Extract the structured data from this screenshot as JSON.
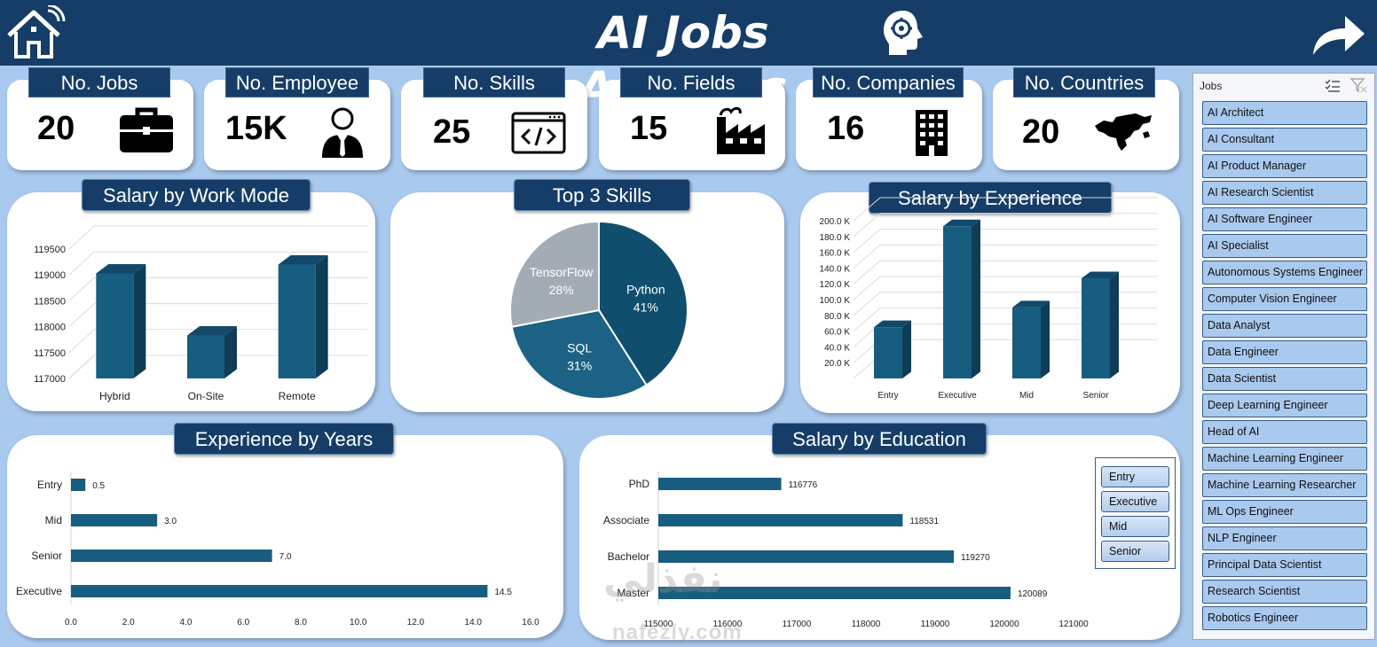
{
  "header": {
    "title": "AI Jobs Analysis"
  },
  "icons": {
    "home": "home-wifi-icon",
    "brain": "brain-gear-icon",
    "forward": "forward-arrow-icon"
  },
  "kpis": [
    {
      "label": "No. Jobs",
      "value": "20",
      "icon": "briefcase-icon"
    },
    {
      "label": "No. Employee",
      "value": "15K",
      "icon": "employee-icon"
    },
    {
      "label": "No. Skills",
      "value": "25",
      "icon": "code-window-icon"
    },
    {
      "label": "No. Fields",
      "value": "15",
      "icon": "factory-icon"
    },
    {
      "label": "No. Companies",
      "value": "16",
      "icon": "building-icon"
    },
    {
      "label": "No. Countries",
      "value": "20",
      "icon": "world-map-icon"
    }
  ],
  "chart_data": [
    {
      "type": "bar",
      "title": "Salary by Work Mode",
      "categories": [
        "Hybrid",
        "On-Site",
        "Remote"
      ],
      "values": [
        119030,
        117830,
        119200
      ],
      "ylim": [
        117000,
        119500
      ],
      "yticks": [
        "117000",
        "117500",
        "118000",
        "118500",
        "119000",
        "119500"
      ],
      "grid": true
    },
    {
      "type": "pie",
      "title": "Top 3 Skills",
      "labels": [
        "Python",
        "SQL",
        "TensorFlow"
      ],
      "values": [
        41,
        31,
        28
      ],
      "value_labels": [
        "41%",
        "31%",
        "28%"
      ],
      "colors": [
        "#0f4e6c",
        "#1c6284",
        "#a3acb4"
      ]
    },
    {
      "type": "bar",
      "title": "Salary by Experience",
      "categories": [
        "Entry",
        "Executive",
        "Mid",
        "Senior"
      ],
      "values": [
        65000,
        193000,
        90000,
        127000
      ],
      "ylim": [
        0,
        200000
      ],
      "yticks": [
        "20.0 K",
        "40.0 K",
        "60.0 K",
        "80.0 K",
        "100.0 K",
        "120.0 K",
        "140.0 K",
        "160.0 K",
        "180.0 K",
        "200.0 K"
      ],
      "grid": true
    },
    {
      "type": "bar",
      "orientation": "horizontal",
      "title": "Experience by Years",
      "categories": [
        "Entry",
        "Mid",
        "Senior",
        "Executive"
      ],
      "values": [
        0.5,
        3.0,
        7.0,
        14.5
      ],
      "value_labels": [
        "0.5",
        "3.0",
        "7.0",
        "14.5"
      ],
      "xlim": [
        0,
        16
      ],
      "xticks": [
        "0.0",
        "2.0",
        "4.0",
        "6.0",
        "8.0",
        "10.0",
        "12.0",
        "14.0",
        "16.0"
      ]
    },
    {
      "type": "bar",
      "orientation": "horizontal",
      "title": "Salary by Education",
      "categories": [
        "PhD",
        "Associate",
        "Bachelor",
        "Master"
      ],
      "values": [
        116776,
        118531,
        119270,
        120089
      ],
      "value_labels": [
        "116776",
        "118531",
        "119270",
        "120089"
      ],
      "xlim": [
        115000,
        121000
      ],
      "xticks": [
        "115000",
        "116000",
        "117000",
        "118000",
        "119000",
        "120000",
        "121000"
      ],
      "legend": {
        "placement": "right",
        "items": [
          "Entry",
          "Executive",
          "Mid",
          "Senior"
        ]
      }
    }
  ],
  "colors": {
    "bar": "#175d80",
    "bar_side": "#0e3d55",
    "bar_top": "#12496a",
    "header": "#153d67",
    "background": "#a9c9ee"
  },
  "slicer": {
    "title": "Jobs",
    "items": [
      "AI Architect",
      "AI Consultant",
      "AI Product Manager",
      "AI Research Scientist",
      "AI Software Engineer",
      "AI Specialist",
      "Autonomous Systems Engineer",
      "Computer Vision Engineer",
      "Data Analyst",
      "Data Engineer",
      "Data Scientist",
      "Deep Learning Engineer",
      "Head of AI",
      "Machine Learning Engineer",
      "Machine Learning Researcher",
      "ML Ops Engineer",
      "NLP Engineer",
      "Principal Data Scientist",
      "Research Scientist",
      "Robotics Engineer"
    ]
  },
  "watermark": {
    "arabic": "نفذلي",
    "latin": "nafezly.com"
  }
}
